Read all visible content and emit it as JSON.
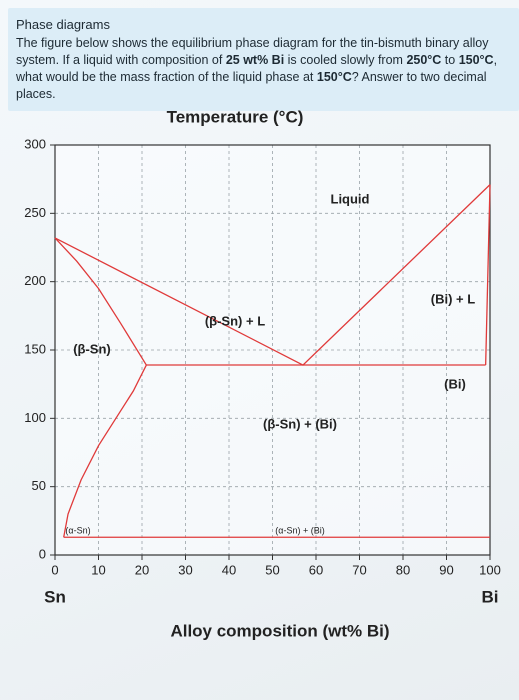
{
  "question": {
    "title": "Phase diagrams",
    "text": [
      "The figure below shows the equilibrium phase diagram for the tin-bismuth binary alloy system. If a liquid with composition of ",
      "25 wt% Bi",
      " is cooled slowly from ",
      "250°C",
      " to ",
      "150°C",
      ", what would be the mass fraction of the liquid phase at ",
      "150°C",
      "? Answer to two decimal places."
    ]
  },
  "chart_data": {
    "type": "line",
    "y_label": "Temperature (°C)",
    "x_label": "Alloy composition (wt% Bi)",
    "x_left_label": "Sn",
    "x_right_label": "Bi",
    "xlim": [
      0,
      100
    ],
    "ylim": [
      0,
      300
    ],
    "xticks": [
      0,
      10,
      20,
      30,
      40,
      50,
      60,
      70,
      80,
      90,
      100
    ],
    "yticks": [
      0,
      50,
      100,
      150,
      200,
      250,
      300
    ],
    "grid": true,
    "series": [
      {
        "color": "#e03a3a",
        "x": [
          0,
          57,
          100
        ],
        "values": [
          232,
          139,
          271
        ]
      },
      {
        "color": "#e03a3a",
        "x": [
          0,
          5,
          10,
          15,
          21
        ],
        "values": [
          232,
          215,
          195,
          170,
          139
        ]
      },
      {
        "color": "#e03a3a",
        "x": [
          21,
          18,
          14,
          10,
          6,
          3,
          2
        ],
        "values": [
          139,
          120,
          100,
          80,
          55,
          30,
          13
        ]
      },
      {
        "color": "#e03a3a",
        "x": [
          21,
          99
        ],
        "values": [
          139,
          139
        ]
      },
      {
        "color": "#e03a3a",
        "x": [
          99,
          100
        ],
        "values": [
          139,
          271
        ]
      },
      {
        "color": "#e03a3a",
        "x": [
          2,
          100
        ],
        "values": [
          13,
          13
        ]
      }
    ],
    "annotations": [
      "Liquid",
      "(β-Sn) + L",
      "(β-Sn)",
      "(Bi) + L",
      "(Bi)",
      "(β-Sn) + (Bi)",
      "(α-Sn)",
      "(α-Sn) + (Bi)"
    ]
  }
}
